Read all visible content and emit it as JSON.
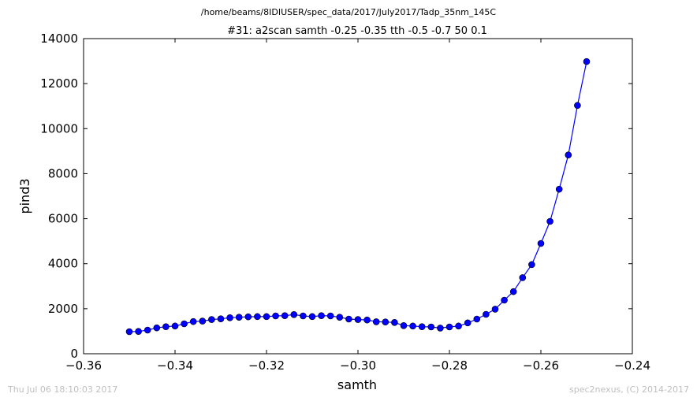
{
  "figure": {
    "suptitle": "/home/beams/8IDIUSER/spec_data/2017/July2017/Tadp_35nm_145C",
    "footer_left": "Thu Jul 06 18:10:03 2017",
    "footer_right": "spec2nexus, (C) 2014-2017"
  },
  "chart_data": {
    "type": "line",
    "title": "#31: a2scan  samth -0.25 -0.35  tth -0.5 -0.7  50 0.1",
    "xlabel": "samth",
    "ylabel": "pind3",
    "xlim": [
      -0.36,
      -0.24
    ],
    "ylim": [
      0,
      14000
    ],
    "xticks": [
      -0.36,
      -0.34,
      -0.32,
      -0.3,
      -0.28,
      -0.26,
      -0.24
    ],
    "xtick_labels": [
      "−0.36",
      "−0.34",
      "−0.32",
      "−0.30",
      "−0.28",
      "−0.26",
      "−0.24"
    ],
    "yticks": [
      0,
      2000,
      4000,
      6000,
      8000,
      10000,
      12000,
      14000
    ],
    "ytick_labels": [
      "0",
      "2000",
      "4000",
      "6000",
      "8000",
      "10000",
      "12000",
      "14000"
    ],
    "grid": false,
    "line_color": "#0000ff",
    "marker": "circle",
    "series": [
      {
        "x": [
          -0.35,
          -0.348,
          -0.346,
          -0.344,
          -0.342,
          -0.34,
          -0.338,
          -0.336,
          -0.334,
          -0.332,
          -0.33,
          -0.328,
          -0.326,
          -0.324,
          -0.322,
          -0.32,
          -0.318,
          -0.316,
          -0.314,
          -0.312,
          -0.31,
          -0.308,
          -0.306,
          -0.304,
          -0.302,
          -0.3,
          -0.298,
          -0.296,
          -0.294,
          -0.292,
          -0.29,
          -0.288,
          -0.286,
          -0.284,
          -0.282,
          -0.28,
          -0.278,
          -0.276,
          -0.274,
          -0.272,
          -0.27,
          -0.268,
          -0.266,
          -0.264,
          -0.262,
          -0.26,
          -0.258,
          -0.256,
          -0.254,
          -0.252,
          -0.25
        ],
        "y": [
          980,
          990,
          1050,
          1150,
          1200,
          1230,
          1330,
          1430,
          1450,
          1520,
          1550,
          1600,
          1620,
          1640,
          1650,
          1650,
          1680,
          1690,
          1740,
          1680,
          1650,
          1690,
          1680,
          1620,
          1540,
          1520,
          1500,
          1420,
          1410,
          1390,
          1250,
          1230,
          1200,
          1190,
          1140,
          1190,
          1230,
          1370,
          1540,
          1750,
          1980,
          2380,
          2760,
          3380,
          3960,
          4900,
          5880,
          7310,
          8830,
          11030,
          12980
        ]
      }
    ]
  }
}
